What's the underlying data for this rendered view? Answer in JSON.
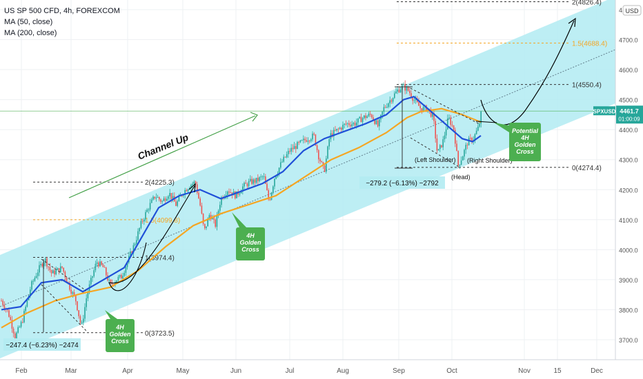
{
  "legend": {
    "title": "US SP 500 CFD, 4h, FOREXCOM",
    "ma1": "MA (50, close)",
    "ma2": "MA (200, close)"
  },
  "axis": {
    "currency": "USD",
    "symbol": "SPXUSD",
    "last_price": "4461.7",
    "countdown": "01:00:09"
  },
  "colors": {
    "channel": "#b2ebf2",
    "ma50": "#2050d8",
    "ma200": "#f5a623",
    "candle_up": "#26a69a",
    "candle_down": "#ef5350",
    "arrow": "#43a047",
    "annotation_box": "#4caf50",
    "price_box": "#26a69a",
    "fib": "#f5a623"
  },
  "chart_data": {
    "type": "candlestick",
    "x_ticks": [
      "Feb",
      "Mar",
      "Apr",
      "May",
      "Jun",
      "Jul",
      "Aug",
      "Sep",
      "Oct",
      "Nov",
      "15",
      "Dec"
    ],
    "y_ticks": [
      3700,
      3800,
      3900,
      4000,
      4100,
      4200,
      4300,
      4400,
      4500,
      4600,
      4700,
      4800
    ],
    "ylim": [
      3655,
      4850
    ],
    "fib_levels_top": [
      {
        "label": "2(4826.4)",
        "value": 4826.4
      },
      {
        "label": "1.5(4688.4)",
        "value": 4688.4
      },
      {
        "label": "1(4550.4)",
        "value": 4550.4
      },
      {
        "label": "0(4274.4)",
        "value": 4274.4
      }
    ],
    "fib_levels_early": [
      {
        "label": "2(4225.3)",
        "value": 4225.3
      },
      {
        "label": "1.5(4099.8)",
        "value": 4099.8
      },
      {
        "label": "1(3974.4)",
        "value": 3974.4
      },
      {
        "label": "0(3723.5)",
        "value": 3723.5
      }
    ],
    "measure_early": "−247.4 (−6.23%) −2474",
    "measure_late": "−279.2 (−6.13%) −2792",
    "annotations": {
      "channel": "Channel Up",
      "left_shoulder": "(Left Shoulder)",
      "head": "(Head)",
      "right_shoulder": "(Right Shoulder)",
      "golden_cross_1": [
        "4H",
        "Golden",
        "Cross"
      ],
      "golden_cross_2": [
        "4H",
        "Golden",
        "Cross"
      ],
      "golden_cross_3": [
        "Potential",
        "4H",
        "Golden",
        "Cross"
      ]
    },
    "price_path": [
      {
        "x": 2,
        "y": 3830
      },
      {
        "x": 12,
        "y": 3790
      },
      {
        "x": 22,
        "y": 3710
      },
      {
        "x": 32,
        "y": 3760
      },
      {
        "x": 45,
        "y": 3880
      },
      {
        "x": 55,
        "y": 3930
      },
      {
        "x": 65,
        "y": 3970
      },
      {
        "x": 75,
        "y": 3920
      },
      {
        "x": 90,
        "y": 3940
      },
      {
        "x": 100,
        "y": 3880
      },
      {
        "x": 110,
        "y": 3830
      },
      {
        "x": 118,
        "y": 3740
      },
      {
        "x": 126,
        "y": 3850
      },
      {
        "x": 140,
        "y": 3960
      },
      {
        "x": 150,
        "y": 3940
      },
      {
        "x": 160,
        "y": 3880
      },
      {
        "x": 168,
        "y": 3900
      },
      {
        "x": 176,
        "y": 3910
      },
      {
        "x": 185,
        "y": 3960
      },
      {
        "x": 195,
        "y": 4020
      },
      {
        "x": 205,
        "y": 4090
      },
      {
        "x": 215,
        "y": 4140
      },
      {
        "x": 225,
        "y": 4180
      },
      {
        "x": 235,
        "y": 4160
      },
      {
        "x": 245,
        "y": 4190
      },
      {
        "x": 255,
        "y": 4150
      },
      {
        "x": 265,
        "y": 4190
      },
      {
        "x": 275,
        "y": 4215
      },
      {
        "x": 283,
        "y": 4225
      },
      {
        "x": 290,
        "y": 4150
      },
      {
        "x": 296,
        "y": 4060
      },
      {
        "x": 304,
        "y": 4120
      },
      {
        "x": 312,
        "y": 4080
      },
      {
        "x": 320,
        "y": 4170
      },
      {
        "x": 330,
        "y": 4200
      },
      {
        "x": 342,
        "y": 4180
      },
      {
        "x": 352,
        "y": 4210
      },
      {
        "x": 362,
        "y": 4225
      },
      {
        "x": 372,
        "y": 4230
      },
      {
        "x": 382,
        "y": 4245
      },
      {
        "x": 390,
        "y": 4160
      },
      {
        "x": 398,
        "y": 4240
      },
      {
        "x": 408,
        "y": 4290
      },
      {
        "x": 420,
        "y": 4330
      },
      {
        "x": 432,
        "y": 4350
      },
      {
        "x": 445,
        "y": 4370
      },
      {
        "x": 455,
        "y": 4380
      },
      {
        "x": 462,
        "y": 4310
      },
      {
        "x": 470,
        "y": 4260
      },
      {
        "x": 478,
        "y": 4380
      },
      {
        "x": 490,
        "y": 4400
      },
      {
        "x": 502,
        "y": 4420
      },
      {
        "x": 514,
        "y": 4420
      },
      {
        "x": 526,
        "y": 4440
      },
      {
        "x": 538,
        "y": 4450
      },
      {
        "x": 548,
        "y": 4410
      },
      {
        "x": 556,
        "y": 4470
      },
      {
        "x": 566,
        "y": 4500
      },
      {
        "x": 576,
        "y": 4530
      },
      {
        "x": 584,
        "y": 4545
      },
      {
        "x": 592,
        "y": 4530
      },
      {
        "x": 600,
        "y": 4500
      },
      {
        "x": 610,
        "y": 4470
      },
      {
        "x": 620,
        "y": 4470
      },
      {
        "x": 628,
        "y": 4440
      },
      {
        "x": 634,
        "y": 4320
      },
      {
        "x": 642,
        "y": 4360
      },
      {
        "x": 650,
        "y": 4440
      },
      {
        "x": 658,
        "y": 4400
      },
      {
        "x": 664,
        "y": 4280
      },
      {
        "x": 670,
        "y": 4310
      },
      {
        "x": 678,
        "y": 4360
      },
      {
        "x": 686,
        "y": 4370
      },
      {
        "x": 694,
        "y": 4410
      },
      {
        "x": 698,
        "y": 4462
      }
    ],
    "ma50_path": [
      {
        "x": 2,
        "y": 3800
      },
      {
        "x": 30,
        "y": 3810
      },
      {
        "x": 60,
        "y": 3890
      },
      {
        "x": 90,
        "y": 3900
      },
      {
        "x": 120,
        "y": 3860
      },
      {
        "x": 150,
        "y": 3900
      },
      {
        "x": 180,
        "y": 3940
      },
      {
        "x": 200,
        "y": 4020
      },
      {
        "x": 230,
        "y": 4140
      },
      {
        "x": 260,
        "y": 4180
      },
      {
        "x": 290,
        "y": 4200
      },
      {
        "x": 320,
        "y": 4170
      },
      {
        "x": 350,
        "y": 4195
      },
      {
        "x": 380,
        "y": 4220
      },
      {
        "x": 410,
        "y": 4260
      },
      {
        "x": 440,
        "y": 4330
      },
      {
        "x": 470,
        "y": 4370
      },
      {
        "x": 500,
        "y": 4395
      },
      {
        "x": 530,
        "y": 4420
      },
      {
        "x": 560,
        "y": 4450
      },
      {
        "x": 585,
        "y": 4500
      },
      {
        "x": 600,
        "y": 4510
      },
      {
        "x": 615,
        "y": 4480
      },
      {
        "x": 630,
        "y": 4450
      },
      {
        "x": 650,
        "y": 4410
      },
      {
        "x": 670,
        "y": 4370
      },
      {
        "x": 685,
        "y": 4360
      },
      {
        "x": 697,
        "y": 4380
      }
    ],
    "ma200_path": [
      {
        "x": 2,
        "y": 3740
      },
      {
        "x": 40,
        "y": 3790
      },
      {
        "x": 80,
        "y": 3830
      },
      {
        "x": 120,
        "y": 3855
      },
      {
        "x": 160,
        "y": 3875
      },
      {
        "x": 200,
        "y": 3930
      },
      {
        "x": 240,
        "y": 4010
      },
      {
        "x": 280,
        "y": 4080
      },
      {
        "x": 320,
        "y": 4120
      },
      {
        "x": 360,
        "y": 4150
      },
      {
        "x": 400,
        "y": 4180
      },
      {
        "x": 440,
        "y": 4240
      },
      {
        "x": 480,
        "y": 4300
      },
      {
        "x": 520,
        "y": 4340
      },
      {
        "x": 560,
        "y": 4390
      },
      {
        "x": 590,
        "y": 4440
      },
      {
        "x": 610,
        "y": 4460
      },
      {
        "x": 640,
        "y": 4470
      },
      {
        "x": 670,
        "y": 4450
      },
      {
        "x": 697,
        "y": 4425
      }
    ]
  }
}
